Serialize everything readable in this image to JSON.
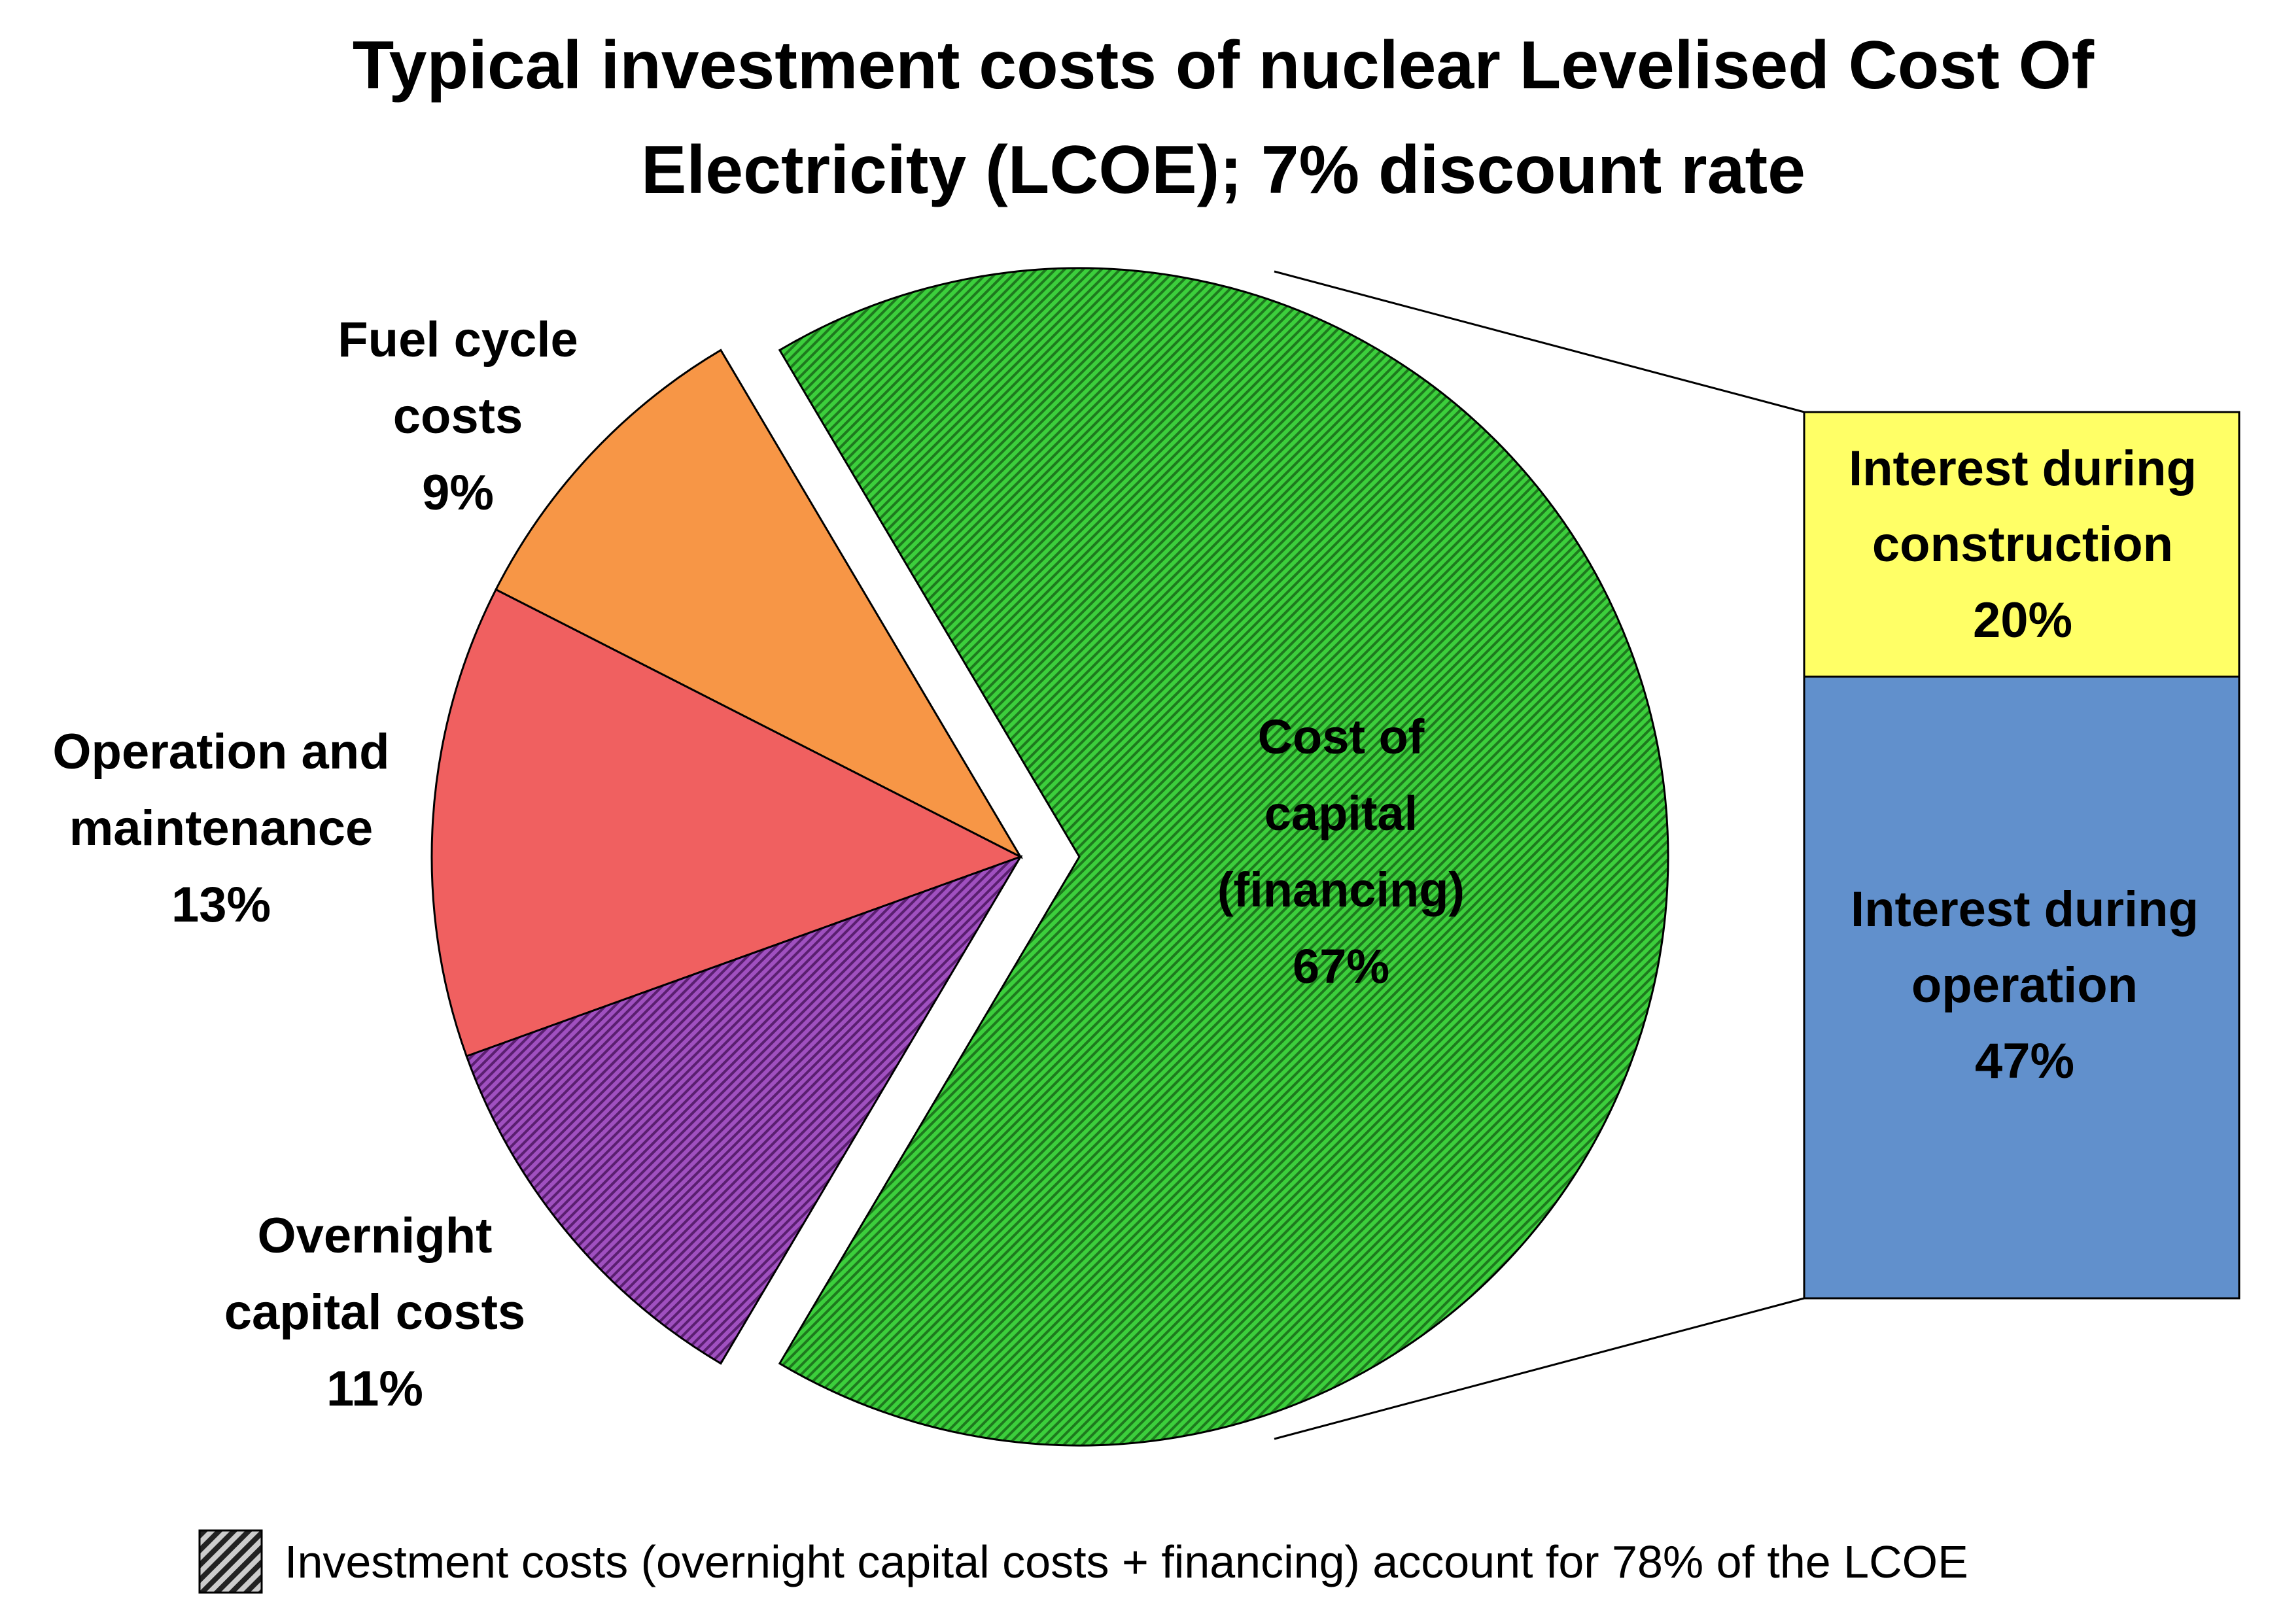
{
  "chart_data": {
    "type": "pie",
    "title_lines": [
      "Typical investment costs of nuclear Levelised Cost Of",
      "Electricity (LCOE); 7% discount rate"
    ],
    "slices": [
      {
        "key": "fuel",
        "label_lines": [
          "Fuel cycle",
          "costs",
          "9%"
        ],
        "value": 9,
        "color": "#f79646",
        "hatched": false,
        "exploded": false
      },
      {
        "key": "om",
        "label_lines": [
          "Operation and",
          "maintenance",
          "13%"
        ],
        "value": 13,
        "color": "#f06060",
        "hatched": false,
        "exploded": false
      },
      {
        "key": "overnight",
        "label_lines": [
          "Overnight",
          "capital costs",
          "11%"
        ],
        "value": 11,
        "color": "#a050c0",
        "hatched": true,
        "exploded": false
      },
      {
        "key": "capital",
        "label_lines": [
          "Cost of",
          "capital",
          "(financing)",
          "67%"
        ],
        "value": 67,
        "color": "#3ccf3c",
        "hatched": true,
        "exploded": true
      }
    ],
    "breakdown": {
      "of": "capital",
      "segments": [
        {
          "key": "construction",
          "label_lines": [
            "Interest during",
            "construction",
            "20%"
          ],
          "value": 20,
          "color": "#ffff66"
        },
        {
          "key": "operation",
          "label_lines": [
            "Interest during",
            "operation",
            "47%"
          ],
          "value": 47,
          "color": "#6190cc"
        }
      ]
    },
    "legend": {
      "text": "Investment costs (overnight capital costs + financing) account for 78% of the LCOE",
      "swatch": "hatched-gray"
    }
  }
}
